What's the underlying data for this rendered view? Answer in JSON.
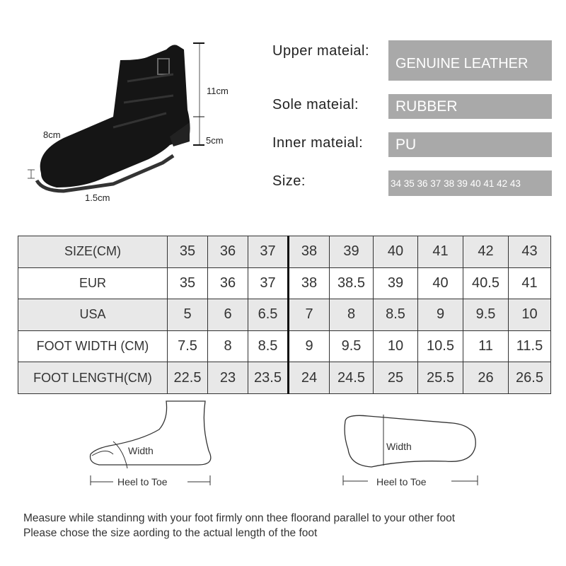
{
  "shoe_dims": {
    "shaft": "11cm",
    "heel": "5cm",
    "opening": "8cm",
    "platform": "1.5cm"
  },
  "specs": [
    {
      "label": "Upper mateial:",
      "value": "GENUINE LEATHER"
    },
    {
      "label": "Sole mateial:",
      "value": "RUBBER"
    },
    {
      "label": "Inner mateial:",
      "value": "PU"
    },
    {
      "label": "Size:",
      "value": "34 35 36 37 38 39 40 41 42 43"
    }
  ],
  "size_table": {
    "rows": [
      {
        "label": "SIZE(CM)",
        "values": [
          "35",
          "36",
          "37",
          "38",
          "39",
          "40",
          "41",
          "42",
          "43"
        ]
      },
      {
        "label": "EUR",
        "values": [
          "35",
          "36",
          "37",
          "38",
          "38.5",
          "39",
          "40",
          "40.5",
          "41"
        ]
      },
      {
        "label": "USA",
        "values": [
          "5",
          "6",
          "6.5",
          "7",
          "8",
          "8.5",
          "9",
          "9.5",
          "10"
        ]
      },
      {
        "label": "FOOT WIDTH (CM)",
        "values": [
          "7.5",
          "8",
          "8.5",
          "9",
          "9.5",
          "10",
          "10.5",
          "11",
          "11.5"
        ]
      },
      {
        "label": "FOOT LENGTH(CM)",
        "values": [
          "22.5",
          "23",
          "23.5",
          "24",
          "24.5",
          "25",
          "25.5",
          "26",
          "26.5"
        ]
      }
    ]
  },
  "diagrams": {
    "width_label": "Width",
    "length_label": "Heel to Toe"
  },
  "notes": [
    "Measure while standinng with your foot firmly onn thee floorand parallel to your other foot",
    "Please chose the size aording to the actual length of the foot"
  ],
  "colors": {
    "spec_box": "#a9a9a9",
    "row_shade": "#e8e8e8"
  }
}
